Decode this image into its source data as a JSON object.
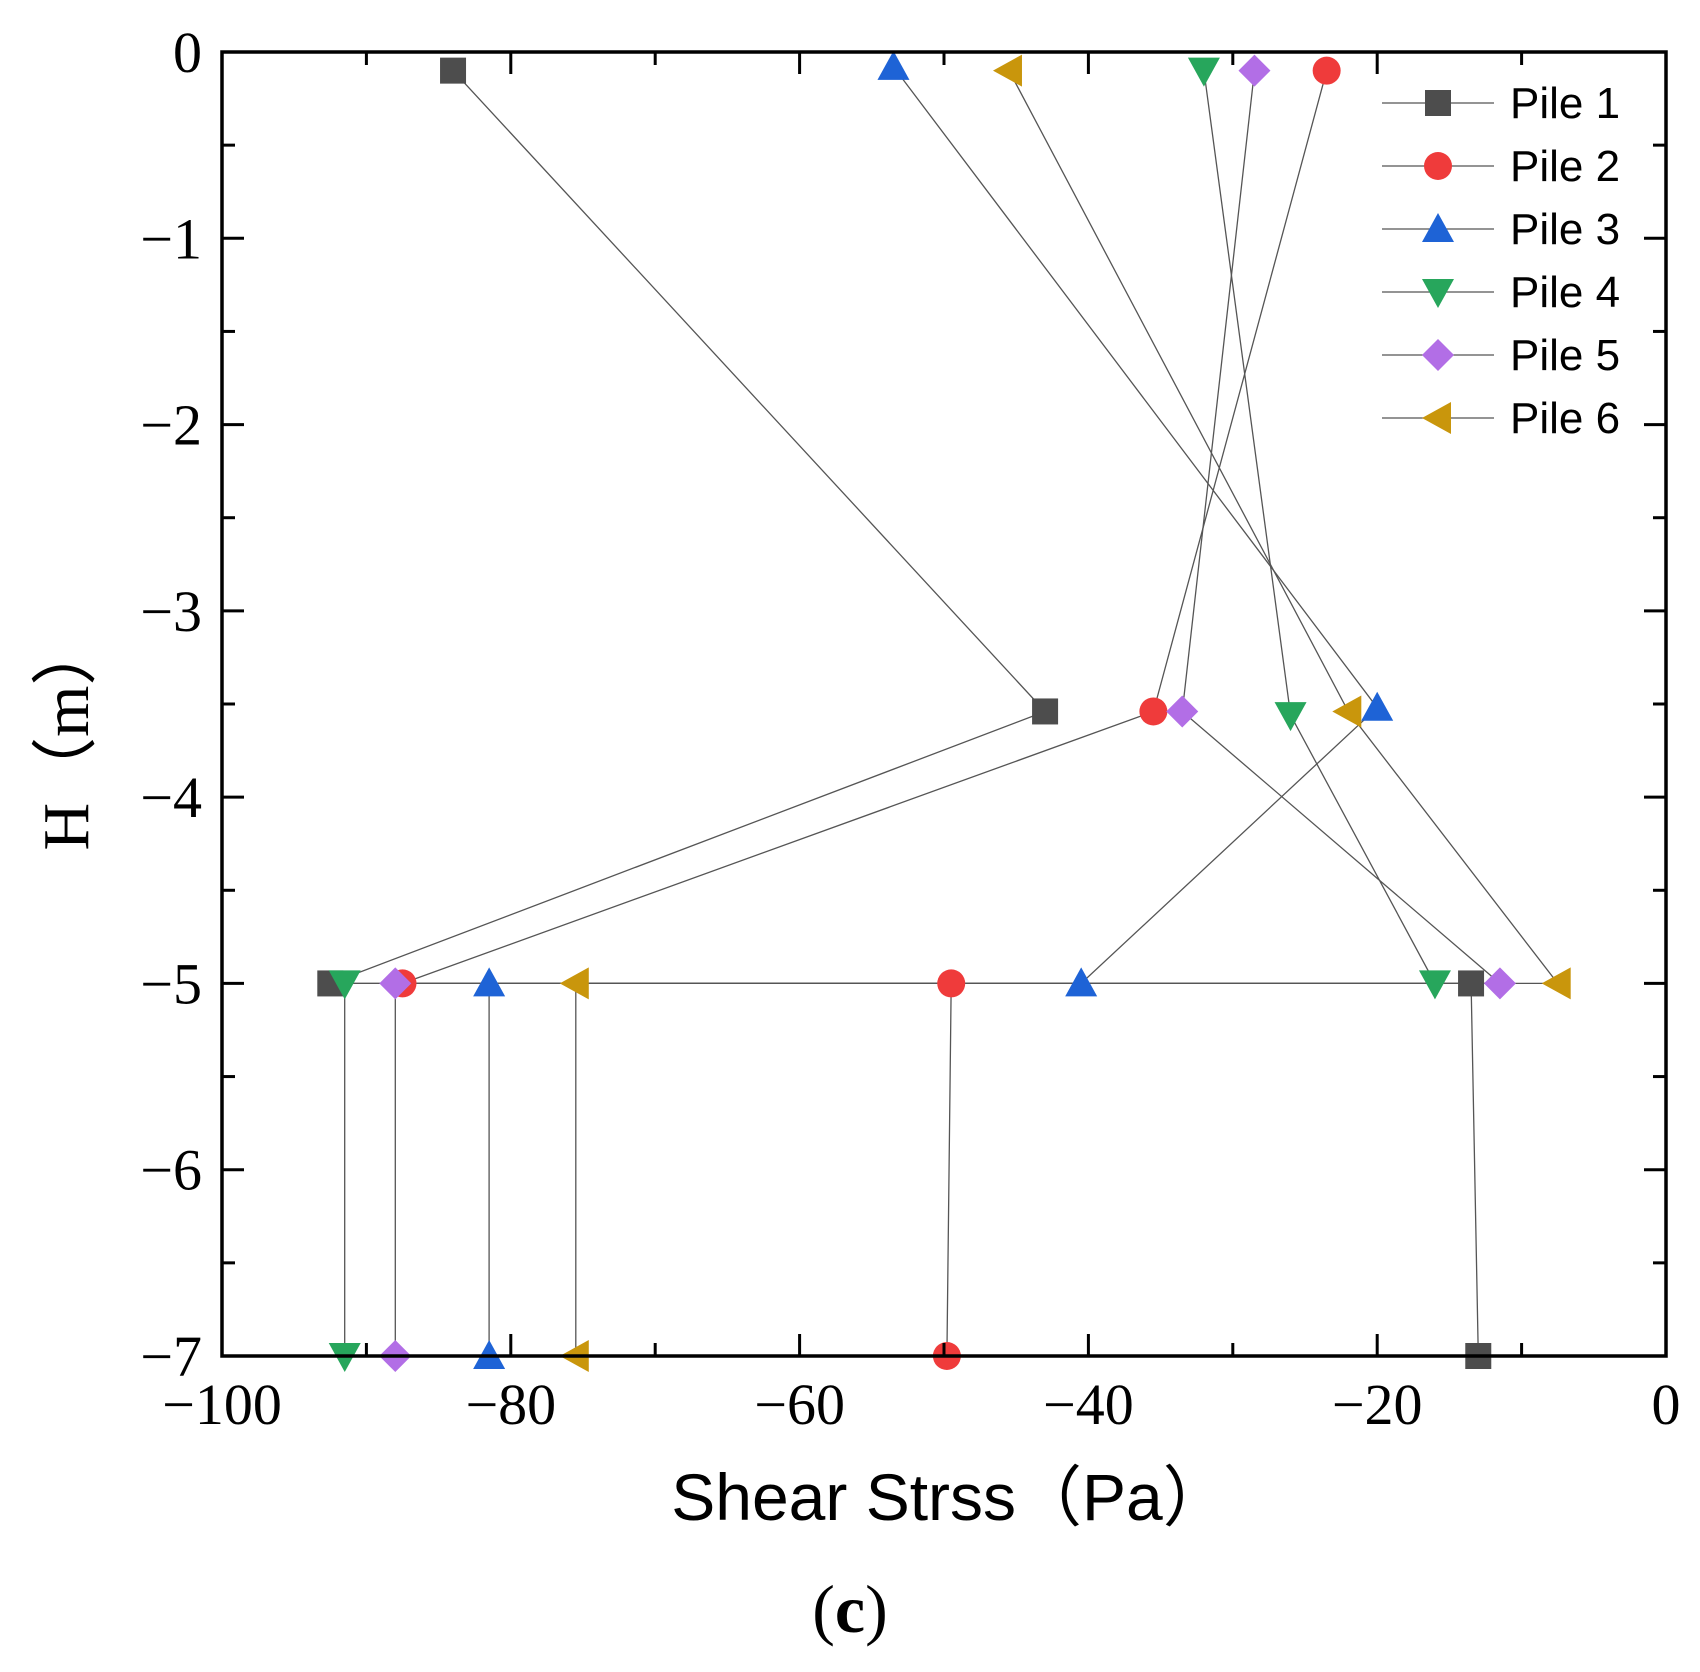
{
  "chart_data": {
    "type": "line",
    "title": "",
    "xlabel": "Shear Strss（Pa）",
    "ylabel": "H（m）",
    "xlim": [
      -100,
      0
    ],
    "ylim": [
      -7,
      0
    ],
    "xticks": [
      -100,
      -80,
      -60,
      -40,
      -20,
      0
    ],
    "yticks": [
      0,
      -1,
      -2,
      -3,
      -4,
      -5,
      -6,
      -7
    ],
    "xtick_labels": [
      "−100",
      "−80",
      "−60",
      "−40",
      "−20",
      "0"
    ],
    "ytick_labels": [
      "0",
      "−1",
      "−2",
      "−3",
      "−4",
      "−5",
      "−6",
      "−7"
    ],
    "grid": false,
    "legend_position": "top-right",
    "series": [
      {
        "name": "Pile 1",
        "marker": "square",
        "color": "#4d4d4d",
        "points": [
          [
            -84,
            -0.1
          ],
          [
            -43,
            -3.54
          ],
          [
            -92.5,
            -5.0
          ],
          [
            -13.5,
            -5.0
          ],
          [
            -13.0,
            -7.0
          ]
        ]
      },
      {
        "name": "Pile 2",
        "marker": "circle",
        "color": "#ef3b3b",
        "points": [
          [
            -23.5,
            -0.1
          ],
          [
            -35.5,
            -3.54
          ],
          [
            -87.5,
            -5.0
          ],
          [
            -49.5,
            -5.0
          ],
          [
            -49.8,
            -7.0
          ]
        ]
      },
      {
        "name": "Pile 3",
        "marker": "triangle-up",
        "color": "#1e63d6",
        "points": [
          [
            -53.5,
            -0.08
          ],
          [
            -20,
            -3.52
          ],
          [
            -40.5,
            -5.0
          ],
          [
            -81.5,
            -5.0
          ],
          [
            -81.5,
            -7.0
          ]
        ]
      },
      {
        "name": "Pile 4",
        "marker": "triangle-down",
        "color": "#27a65c",
        "points": [
          [
            -32,
            -0.1
          ],
          [
            -26,
            -3.56
          ],
          [
            -16,
            -5.0
          ],
          [
            -91.5,
            -5.0
          ],
          [
            -91.5,
            -7.0
          ]
        ]
      },
      {
        "name": "Pile 5",
        "marker": "diamond",
        "color": "#b26ee6",
        "points": [
          [
            -28.5,
            -0.1
          ],
          [
            -33.5,
            -3.54
          ],
          [
            -11.5,
            -5.0
          ],
          [
            -88,
            -5.0
          ],
          [
            -88,
            -7.0
          ]
        ]
      },
      {
        "name": "Pile 6",
        "marker": "triangle-left",
        "color": "#c9960c",
        "points": [
          [
            -45.5,
            -0.1
          ],
          [
            -22,
            -3.54
          ],
          [
            -7.5,
            -5.0
          ],
          [
            -75.5,
            -5.0
          ],
          [
            -75.5,
            -7.0
          ]
        ]
      }
    ]
  },
  "panel_label": {
    "open": "(",
    "letter": "c",
    "close": ")"
  }
}
